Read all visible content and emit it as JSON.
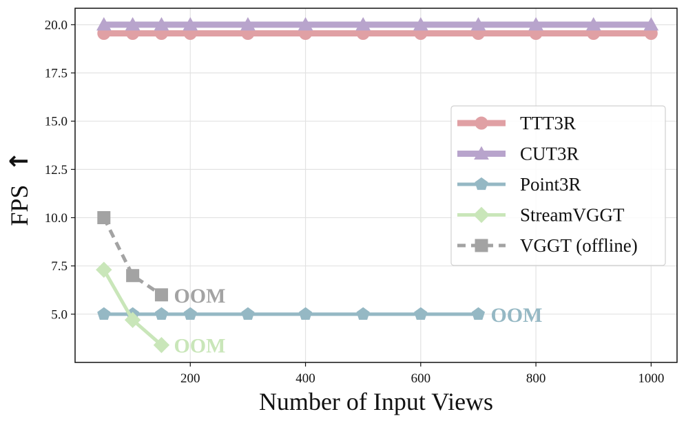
{
  "chart_data": {
    "type": "line",
    "xlabel": "Number of Input Views",
    "ylabel": "FPS",
    "ylabel_arrow": "↑",
    "xlim": [
      0,
      1045
    ],
    "ylim": [
      2.5,
      20.85
    ],
    "xticks": [
      200,
      400,
      600,
      800,
      1000
    ],
    "yticks": [
      5.0,
      7.5,
      10.0,
      12.5,
      15.0,
      17.5,
      20.0
    ],
    "grid": true,
    "legend_position": "center-right",
    "series": [
      {
        "name": "TTT3R",
        "color": "#e0a0a4",
        "marker": "circle",
        "dashed": false,
        "x": [
          50,
          100,
          150,
          200,
          300,
          400,
          500,
          600,
          700,
          800,
          900,
          1000
        ],
        "y": [
          19.55,
          19.55,
          19.55,
          19.55,
          19.55,
          19.55,
          19.55,
          19.55,
          19.55,
          19.55,
          19.55,
          19.55
        ]
      },
      {
        "name": "CUT3R",
        "color": "#b8a4cc",
        "marker": "triangle",
        "dashed": false,
        "x": [
          50,
          100,
          150,
          200,
          300,
          400,
          500,
          600,
          700,
          800,
          900,
          1000
        ],
        "y": [
          20.0,
          20.0,
          20.0,
          20.0,
          20.0,
          20.0,
          20.0,
          20.0,
          20.0,
          20.0,
          20.0,
          20.0
        ]
      },
      {
        "name": "Point3R",
        "color": "#95b8c4",
        "marker": "pentagon",
        "dashed": false,
        "x": [
          50,
          100,
          150,
          200,
          300,
          400,
          500,
          600,
          700
        ],
        "y": [
          5.0,
          5.0,
          5.0,
          5.0,
          5.0,
          5.0,
          5.0,
          5.0,
          5.0
        ],
        "oom": "OOM"
      },
      {
        "name": "StreamVGGT",
        "color": "#c9e6b9",
        "marker": "diamond",
        "dashed": false,
        "x": [
          50,
          100,
          150
        ],
        "y": [
          7.3,
          4.7,
          3.4
        ],
        "oom": "OOM"
      },
      {
        "name": "VGGT (offline)",
        "color": "#a3a3a3",
        "marker": "square",
        "dashed": true,
        "x": [
          50,
          100,
          150
        ],
        "y": [
          10.0,
          7.0,
          6.0
        ],
        "oom": "OOM"
      }
    ]
  }
}
